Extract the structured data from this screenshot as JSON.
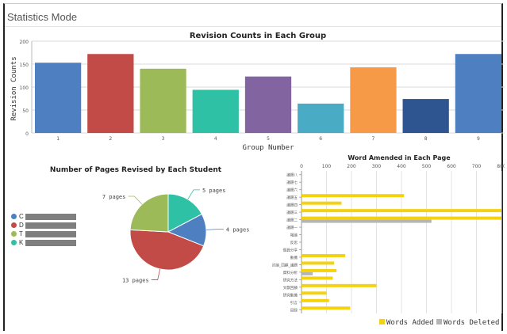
{
  "app": {
    "title": "Statistics Mode"
  },
  "chart_data": [
    {
      "type": "bar",
      "title": "Revision Counts in Each Group",
      "xlabel": "Group Number",
      "ylabel": "Revision Counts",
      "ylim": [
        0,
        200
      ],
      "yticks": [
        0,
        50,
        100,
        150,
        200
      ],
      "categories": [
        "1",
        "2",
        "3",
        "4",
        "5",
        "6",
        "7",
        "8",
        "9"
      ],
      "values": [
        153,
        172,
        140,
        94,
        123,
        64,
        143,
        74,
        172
      ],
      "colors": [
        "#4e7fc0",
        "#c24a47",
        "#9cbb58",
        "#2ec1a5",
        "#8264a1",
        "#4aabc4",
        "#f79a47",
        "#2e5590",
        "#4e7fc0"
      ],
      "grid": true
    },
    {
      "type": "pie",
      "title": "Number of Pages Revised by Each Student",
      "slices": [
        {
          "label": "5 pages",
          "value": 5,
          "color": "#2ec1a5"
        },
        {
          "label": "4 pages",
          "value": 4,
          "color": "#4e7fc0"
        },
        {
          "label": "13 pages",
          "value": 13,
          "color": "#c24a47"
        },
        {
          "label": "7 pages",
          "value": 7,
          "color": "#9cbb58"
        }
      ],
      "legend": [
        {
          "label": "C",
          "color": "#4e7fc0"
        },
        {
          "label": "D",
          "color": "#c24a47"
        },
        {
          "label": "T",
          "color": "#9cbb58"
        },
        {
          "label": "K",
          "color": "#2ec1a5"
        }
      ]
    },
    {
      "type": "bar",
      "orientation": "horizontal",
      "title": "Word Amended in Each Page",
      "xlim": [
        0,
        800
      ],
      "xticks": [
        0,
        100,
        200,
        300,
        400,
        500,
        600,
        700,
        800
      ],
      "categories": [
        "議題八",
        "議題七",
        "議題六",
        "議題五",
        "議題四",
        "議題三",
        "議題二",
        "議題一",
        "報論",
        "反思",
        "個員分享",
        "動機",
        "討論_回顧_議題",
        "資料分析",
        "研究方法",
        "文獻回顧",
        "研究動機",
        "引言",
        "目錄"
      ],
      "series": [
        {
          "name": "Words Added",
          "color": "#f5d20f",
          "values": [
            0,
            0,
            0,
            410,
            160,
            800,
            800,
            0,
            0,
            0,
            0,
            175,
            130,
            140,
            125,
            300,
            100,
            110,
            195
          ]
        },
        {
          "name": "Words Deleted",
          "color": "#b5b5b5",
          "values": [
            0,
            0,
            0,
            0,
            0,
            0,
            520,
            0,
            0,
            0,
            0,
            0,
            0,
            45,
            0,
            0,
            0,
            0,
            0
          ]
        }
      ],
      "legend_position": "bottom-right",
      "grid": true
    }
  ]
}
